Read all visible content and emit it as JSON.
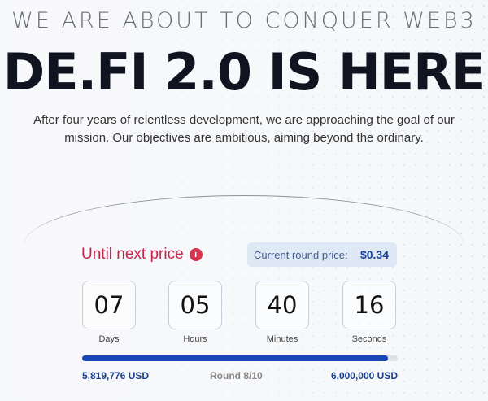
{
  "header": {
    "kicker": "WE ARE ABOUT TO CONQUER WEB3",
    "title": "DE.FI 2.0 IS HERE",
    "description": "After four years of relentless development, we are approaching the goal of our mission. Our objectives are ambitious, aiming beyond the ordinary."
  },
  "countdown": {
    "label": "Until next price",
    "info_icon": "info-icon",
    "price_label": "Current round price:",
    "price_value": "$0.34",
    "units": [
      {
        "value": "07",
        "label": "Days"
      },
      {
        "value": "05",
        "label": "Hours"
      },
      {
        "value": "40",
        "label": "Minutes"
      },
      {
        "value": "16",
        "label": "Seconds"
      }
    ]
  },
  "progress": {
    "raised": "5,819,776 USD",
    "round": "Round 8/10",
    "goal": "6,000,000 USD",
    "fraction": 0.97
  },
  "colors": {
    "accent_red": "#c8234a",
    "accent_blue": "#1a47b8"
  }
}
